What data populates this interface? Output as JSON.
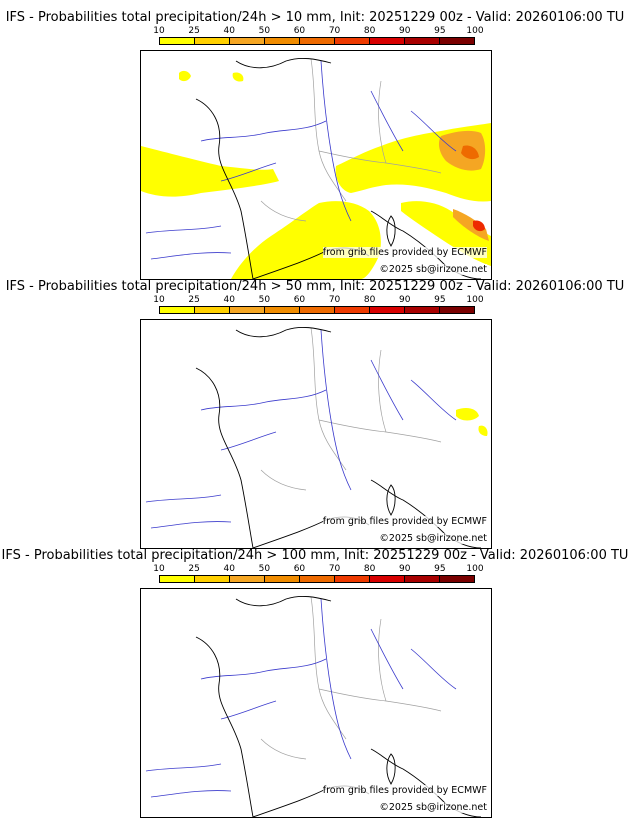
{
  "legend": {
    "ticks": [
      "10",
      "25",
      "40",
      "50",
      "60",
      "70",
      "80",
      "90",
      "95",
      "100"
    ],
    "colors": [
      "#ffff00",
      "#ffd000",
      "#f5a623",
      "#f08c00",
      "#ee6a00",
      "#ee3a00",
      "#d80000",
      "#a80000",
      "#7a0000"
    ]
  },
  "colors": {
    "coast": "#000000",
    "rivers": "#3a3acc",
    "borders": "#a0a0a0",
    "low_prob": "#ffff00",
    "mid_prob": "#f5a623",
    "high_prob": "#ee2a00"
  },
  "panels": [
    {
      "title": "IFS - Probabilities total precipitation/24h > 10 mm, Init: 20251229 00z - Valid: 20260106:00 TU",
      "credit_source": "from grib files provided by ECMWF",
      "credit_copyright": "©2025 sb@irizone.net",
      "coverage": "extensive"
    },
    {
      "title": "IFS - Probabilities total precipitation/24h > 50 mm, Init: 20251229 00z - Valid: 20260106:00 TU",
      "credit_source": "from grib files provided by ECMWF",
      "credit_copyright": "©2025 sb@irizone.net",
      "coverage": "sparse"
    },
    {
      "title": "IFS - Probabilities total precipitation/24h > 100 mm, Init: 20251229 00z - Valid: 20260106:00 TU",
      "credit_source": "from grib files provided by ECMWF",
      "credit_copyright": "©2025 sb@irizone.net",
      "coverage": "none"
    }
  ]
}
